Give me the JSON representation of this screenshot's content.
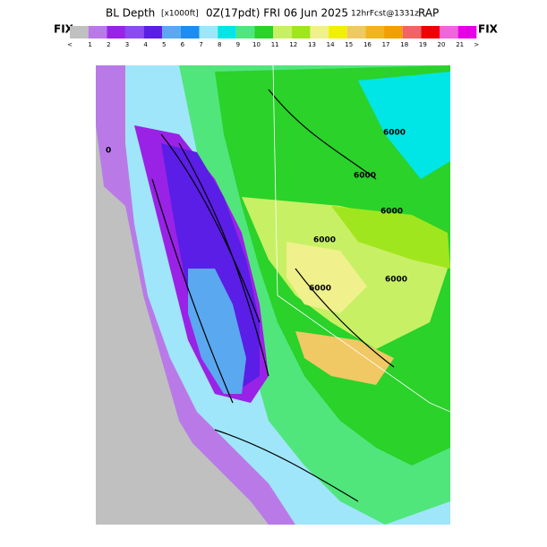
{
  "header": {
    "title": "BL Depth",
    "units": "[x1000ft]",
    "valid": "0Z(17pdt) FRI 06 Jun 2025",
    "forecast": "12hrFcst@1331z",
    "model": "RAP"
  },
  "legend": {
    "left_label": "FIX",
    "right_label": "FIX",
    "colors": [
      "#c0c0c0",
      "#b97ae8",
      "#9a22e6",
      "#8a4cf0",
      "#5a1ee6",
      "#5aa8f0",
      "#1e8cf0",
      "#a0e6fa",
      "#00e6e6",
      "#50e67c",
      "#2ad22a",
      "#c8f064",
      "#a0e61e",
      "#f0f08c",
      "#f0f000",
      "#f0c864",
      "#f0b41e",
      "#f0a000",
      "#f06464",
      "#f00000",
      "#f064dc",
      "#e600e6"
    ],
    "labels": [
      "<",
      "1",
      "2",
      "3",
      "4",
      "5",
      "6",
      "7",
      "8",
      "9",
      "10",
      "11",
      "12",
      "13",
      "14",
      "15",
      "16",
      "17",
      "18",
      "19",
      "20",
      "21",
      ">"
    ]
  },
  "map": {
    "contour_labels": [
      "6000",
      "6000",
      "6000",
      "6000",
      "6000",
      "6000",
      "0"
    ]
  }
}
